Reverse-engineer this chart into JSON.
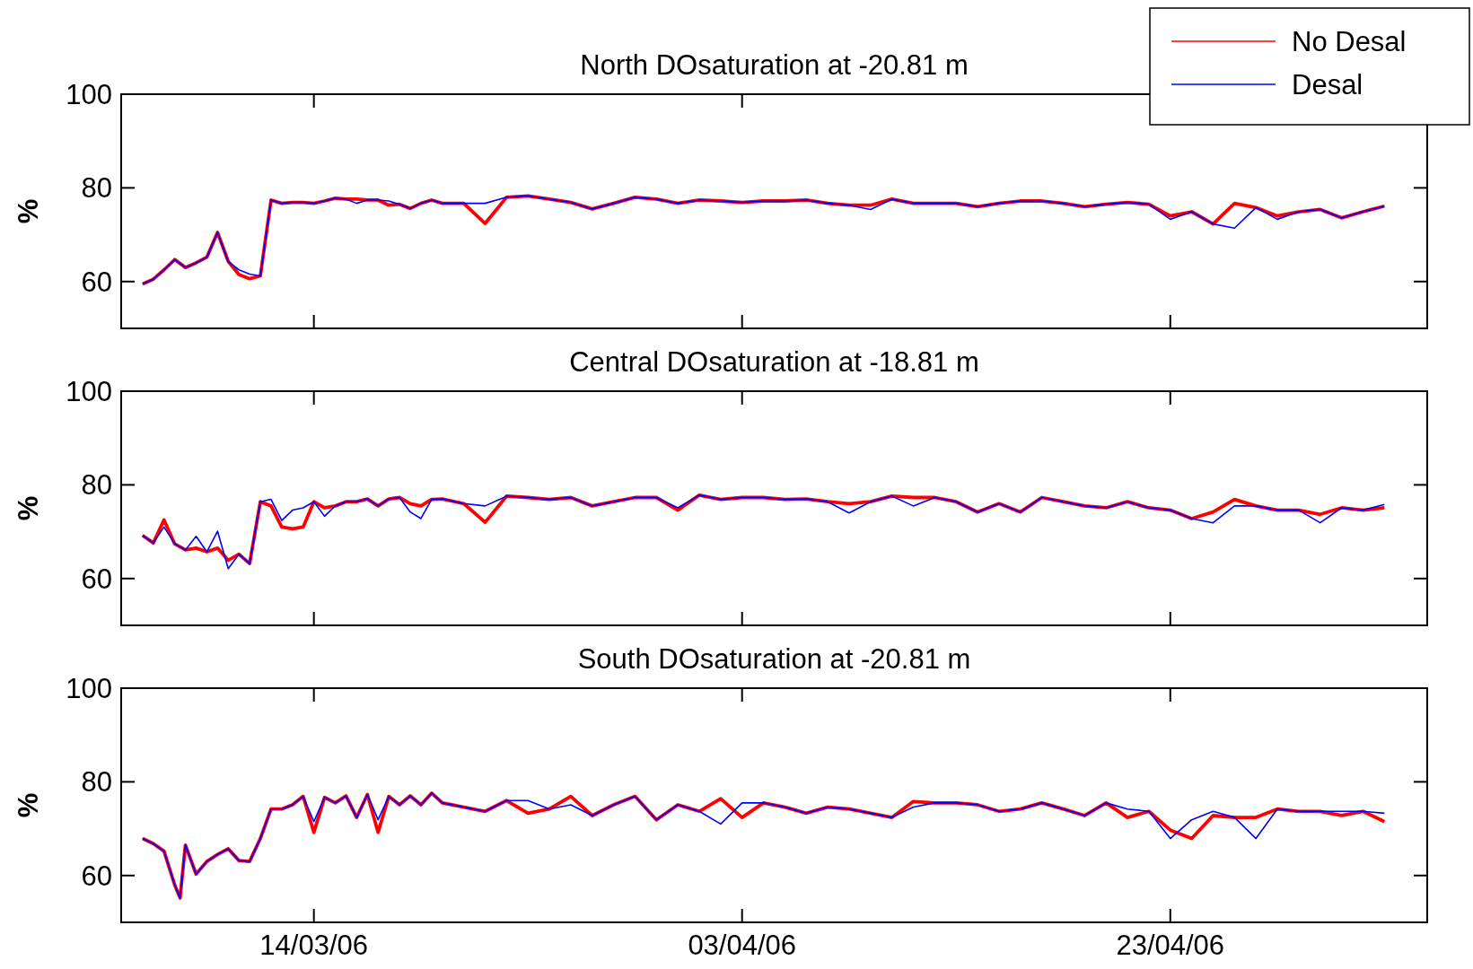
{
  "chart_data": [
    {
      "type": "line",
      "title": "North DOsaturation at -20.81 m",
      "ylabel": "%",
      "legend": "top right",
      "tick_labels": "y",
      "xlim": [
        "2006-03-05",
        "2006-05-05"
      ],
      "xticks": [
        {
          "value": "2006-03-14",
          "label": null
        },
        {
          "value": "2006-04-03",
          "label": null
        },
        {
          "value": "2006-04-23",
          "label": null
        }
      ],
      "ylim": [
        50,
        100
      ],
      "yticks": [
        60,
        80,
        100
      ],
      "x": [
        "2006-03-06T00:00",
        "2006-03-06T12:00",
        "2006-03-07T00:00",
        "2006-03-07T12:00",
        "2006-03-08T00:00",
        "2006-03-08T12:00",
        "2006-03-09T00:00",
        "2006-03-09T12:00",
        "2006-03-10T00:00",
        "2006-03-10T12:00",
        "2006-03-11T00:00",
        "2006-03-11T12:00",
        "2006-03-12T00:00",
        "2006-03-12T12:00",
        "2006-03-13T00:00",
        "2006-03-13T12:00",
        "2006-03-14T00:00",
        "2006-03-14T12:00",
        "2006-03-15T00:00",
        "2006-03-15T12:00",
        "2006-03-16T00:00",
        "2006-03-16T12:00",
        "2006-03-17T00:00",
        "2006-03-17T12:00",
        "2006-03-18T00:00",
        "2006-03-18T12:00",
        "2006-03-19T00:00",
        "2006-03-19T12:00",
        "2006-03-20",
        "2006-03-21",
        "2006-03-22",
        "2006-03-23",
        "2006-03-24",
        "2006-03-25",
        "2006-03-26",
        "2006-03-27",
        "2006-03-28",
        "2006-03-29",
        "2006-03-30",
        "2006-03-31",
        "2006-04-01",
        "2006-04-02",
        "2006-04-03",
        "2006-04-04",
        "2006-04-05",
        "2006-04-06",
        "2006-04-07",
        "2006-04-08",
        "2006-04-09",
        "2006-04-10",
        "2006-04-11",
        "2006-04-12",
        "2006-04-13",
        "2006-04-14",
        "2006-04-15",
        "2006-04-16",
        "2006-04-17",
        "2006-04-18",
        "2006-04-19",
        "2006-04-20",
        "2006-04-21",
        "2006-04-22",
        "2006-04-23",
        "2006-04-24",
        "2006-04-25",
        "2006-04-26",
        "2006-04-27",
        "2006-04-28",
        "2006-04-29",
        "2006-04-30",
        "2006-05-01",
        "2006-05-02",
        "2006-05-03"
      ],
      "series": [
        {
          "name": "No Desal",
          "color": "#ff0000",
          "values": [
            59.5,
            60.5,
            62.5,
            64.7,
            63,
            64,
            65.2,
            70.5,
            64.3,
            61.5,
            60.6,
            61.2,
            77.4,
            76.7,
            76.9,
            76.9,
            76.7,
            77.2,
            77.8,
            77.6,
            77.6,
            77.4,
            77.4,
            76.3,
            76.5,
            75.6,
            76.7,
            77.4,
            76.7,
            76.7,
            72.4,
            78,
            78.3,
            77.6,
            76.9,
            75.5,
            76.7,
            78,
            77.6,
            76.7,
            77.4,
            77.2,
            76.9,
            77.2,
            77.2,
            77.4,
            76.7,
            76.3,
            76.3,
            77.6,
            76.7,
            76.7,
            76.7,
            76,
            76.7,
            77.2,
            77.2,
            76.7,
            76,
            76.5,
            76.9,
            76.5,
            74,
            74.9,
            72.3,
            76.7,
            75.8,
            74,
            74.9,
            75.4,
            73.6,
            74.9,
            76.1
          ]
        },
        {
          "name": "Desal",
          "color": "#0000ff",
          "values": [
            59.5,
            60.5,
            62.5,
            64.7,
            63,
            64,
            65.2,
            70.5,
            64.3,
            62.5,
            61.6,
            61.2,
            77.4,
            76.7,
            76.9,
            76.9,
            76.7,
            77.2,
            77.8,
            77.6,
            76.7,
            77.4,
            77.4,
            77.2,
            76.5,
            75.6,
            76.7,
            77.4,
            76.7,
            76.7,
            76.7,
            78,
            78.3,
            77.6,
            76.9,
            75.5,
            76.7,
            78,
            77.6,
            76.7,
            77.4,
            77.2,
            76.9,
            77.2,
            77.2,
            77.4,
            76.7,
            76.3,
            75.4,
            77.6,
            76.7,
            76.7,
            76.7,
            76,
            76.7,
            77.2,
            77.2,
            76.7,
            76,
            76.5,
            76.9,
            76.5,
            73.3,
            74.9,
            72.3,
            71.4,
            75.8,
            73.3,
            74.9,
            75.4,
            73.6,
            74.9,
            76.1
          ]
        }
      ]
    },
    {
      "type": "line",
      "title": "Central DOsaturation at -18.81 m",
      "ylabel": "%",
      "tick_labels": "y",
      "xlim": [
        "2006-03-05",
        "2006-05-05"
      ],
      "xticks": [
        {
          "value": "2006-03-14",
          "label": null
        },
        {
          "value": "2006-04-03",
          "label": null
        },
        {
          "value": "2006-04-23",
          "label": null
        }
      ],
      "ylim": [
        50,
        100
      ],
      "yticks": [
        60,
        80,
        100
      ],
      "x": [
        "2006-03-06T00:00",
        "2006-03-06T12:00",
        "2006-03-07T00:00",
        "2006-03-07T12:00",
        "2006-03-08T00:00",
        "2006-03-08T12:00",
        "2006-03-09T00:00",
        "2006-03-09T12:00",
        "2006-03-10T00:00",
        "2006-03-10T12:00",
        "2006-03-11T00:00",
        "2006-03-11T12:00",
        "2006-03-12T00:00",
        "2006-03-12T12:00",
        "2006-03-13T00:00",
        "2006-03-13T12:00",
        "2006-03-14T00:00",
        "2006-03-14T12:00",
        "2006-03-15T00:00",
        "2006-03-15T12:00",
        "2006-03-16T00:00",
        "2006-03-16T12:00",
        "2006-03-17T00:00",
        "2006-03-17T12:00",
        "2006-03-18T00:00",
        "2006-03-18T12:00",
        "2006-03-19T00:00",
        "2006-03-19T12:00",
        "2006-03-20",
        "2006-03-21",
        "2006-03-22",
        "2006-03-23",
        "2006-03-24",
        "2006-03-25",
        "2006-03-26",
        "2006-03-27",
        "2006-03-28",
        "2006-03-29",
        "2006-03-30",
        "2006-03-31",
        "2006-04-01",
        "2006-04-02",
        "2006-04-03",
        "2006-04-04",
        "2006-04-05",
        "2006-04-06",
        "2006-04-07",
        "2006-04-08",
        "2006-04-09",
        "2006-04-10",
        "2006-04-11",
        "2006-04-12",
        "2006-04-13",
        "2006-04-14",
        "2006-04-15",
        "2006-04-16",
        "2006-04-17",
        "2006-04-18",
        "2006-04-19",
        "2006-04-20",
        "2006-04-21",
        "2006-04-22",
        "2006-04-23",
        "2006-04-24",
        "2006-04-25",
        "2006-04-26",
        "2006-04-27",
        "2006-04-28",
        "2006-04-29",
        "2006-04-30",
        "2006-05-01",
        "2006-05-02",
        "2006-05-03"
      ],
      "series": [
        {
          "color": "#ff0000",
          "values": [
            69.2,
            67.6,
            72.5,
            67.4,
            66.1,
            66.5,
            65.7,
            66.5,
            63.9,
            65.2,
            63.2,
            76.4,
            75.5,
            71,
            70.6,
            71,
            76.4,
            75.1,
            75.5,
            76.4,
            76.4,
            77,
            75.5,
            77,
            77.3,
            76,
            75.5,
            76.9,
            77,
            76,
            72,
            77.6,
            77.3,
            76.9,
            77.3,
            75.5,
            76.4,
            77.3,
            77.3,
            74.6,
            77.8,
            76.9,
            77.3,
            77.3,
            76.9,
            77,
            76.4,
            76,
            76.4,
            77.6,
            77.3,
            77.3,
            76.4,
            74.2,
            76,
            74.2,
            77.3,
            76.4,
            75.5,
            75.1,
            76.4,
            75.1,
            74.6,
            72.8,
            74.2,
            76.9,
            75.5,
            74.6,
            74.6,
            73.7,
            75.1,
            74.6,
            75.1
          ]
        },
        {
          "color": "#0000ff",
          "values": [
            69.2,
            67.6,
            71,
            67.4,
            66.1,
            69,
            65.7,
            70.1,
            62.1,
            65.2,
            63.2,
            76.4,
            76.9,
            72.4,
            74.6,
            75.1,
            76.4,
            73.3,
            75.5,
            76.4,
            76.4,
            77,
            75.5,
            77,
            77.3,
            74.2,
            72.8,
            76.9,
            77,
            76,
            75.5,
            77.6,
            77.3,
            76.9,
            77.3,
            75.5,
            76.4,
            77.3,
            77.3,
            75.1,
            77.8,
            76.9,
            77.3,
            77.3,
            76.9,
            77,
            76.4,
            74,
            76.4,
            77.6,
            75.5,
            77.3,
            76.4,
            74.2,
            76,
            74.2,
            77.3,
            76.4,
            75.5,
            75.1,
            76.4,
            75.1,
            74.6,
            72.8,
            71.9,
            75.5,
            75.5,
            74.6,
            74.6,
            71.9,
            75.1,
            74.6,
            75.8
          ]
        }
      ]
    },
    {
      "type": "line",
      "title": "South DOsaturation at -20.81 m",
      "ylabel": "%",
      "xlim": [
        "2006-03-05",
        "2006-05-05"
      ],
      "xticks": [
        {
          "value": "2006-03-14",
          "label": "14/03/06"
        },
        {
          "value": "2006-04-03",
          "label": "03/04/06"
        },
        {
          "value": "2006-04-23",
          "label": "23/04/06"
        }
      ],
      "ylim": [
        50,
        100
      ],
      "yticks": [
        60,
        80,
        100
      ],
      "x": [
        "2006-03-06T00:00",
        "2006-03-06T12:00",
        "2006-03-07T00:00",
        "2006-03-07T12:00",
        "2006-03-07T18:00",
        "2006-03-08T00:00",
        "2006-03-08T12:00",
        "2006-03-09T00:00",
        "2006-03-09T12:00",
        "2006-03-10T00:00",
        "2006-03-10T12:00",
        "2006-03-11T00:00",
        "2006-03-11T12:00",
        "2006-03-12T00:00",
        "2006-03-12T12:00",
        "2006-03-13T00:00",
        "2006-03-13T12:00",
        "2006-03-14T00:00",
        "2006-03-14T12:00",
        "2006-03-15T00:00",
        "2006-03-15T12:00",
        "2006-03-16T00:00",
        "2006-03-16T12:00",
        "2006-03-17T00:00",
        "2006-03-17T12:00",
        "2006-03-18T00:00",
        "2006-03-18T12:00",
        "2006-03-19T00:00",
        "2006-03-19T12:00",
        "2006-03-20",
        "2006-03-21",
        "2006-03-22",
        "2006-03-23",
        "2006-03-24",
        "2006-03-25",
        "2006-03-26",
        "2006-03-27",
        "2006-03-28",
        "2006-03-29",
        "2006-03-30",
        "2006-03-31",
        "2006-04-01",
        "2006-04-02",
        "2006-04-03",
        "2006-04-04",
        "2006-04-05",
        "2006-04-06",
        "2006-04-07",
        "2006-04-08",
        "2006-04-09",
        "2006-04-10",
        "2006-04-11",
        "2006-04-12",
        "2006-04-13",
        "2006-04-14",
        "2006-04-15",
        "2006-04-16",
        "2006-04-17",
        "2006-04-18",
        "2006-04-19",
        "2006-04-20",
        "2006-04-21",
        "2006-04-22",
        "2006-04-23",
        "2006-04-24",
        "2006-04-25",
        "2006-04-26",
        "2006-04-27",
        "2006-04-28",
        "2006-04-29",
        "2006-04-30",
        "2006-05-01",
        "2006-05-02",
        "2006-05-03"
      ],
      "series": [
        {
          "color": "#ff0000",
          "values": [
            67.9,
            66.8,
            65.2,
            58,
            55.2,
            66.5,
            60.3,
            63,
            64.5,
            65.7,
            63.2,
            63,
            67.9,
            74.2,
            74.2,
            75.1,
            76.9,
            69.2,
            76.7,
            75.5,
            77,
            72.4,
            77.3,
            69.2,
            76.9,
            75.1,
            77,
            75.1,
            77.6,
            75.5,
            74.6,
            73.7,
            76,
            73.3,
            74.2,
            76.9,
            72.8,
            75.1,
            76.9,
            71.9,
            75.1,
            73.7,
            76.4,
            72.4,
            75.5,
            74.6,
            73.3,
            74.6,
            74.2,
            73.3,
            72.4,
            75.8,
            75.5,
            75.5,
            75.1,
            73.7,
            74.2,
            75.5,
            74.2,
            72.8,
            75.5,
            72.4,
            73.7,
            69.7,
            67.9,
            72.8,
            72.4,
            72.4,
            74.2,
            73.7,
            73.7,
            72.8,
            73.7,
            71.5
          ]
        },
        {
          "color": "#0000ff",
          "values": [
            67.9,
            66.8,
            65.2,
            58,
            55.2,
            66.5,
            60.3,
            63,
            64.5,
            65.7,
            63.2,
            63,
            67.9,
            74.2,
            74.2,
            75.1,
            76.9,
            71.5,
            76.7,
            75.5,
            77,
            72.4,
            77.3,
            71.9,
            76.9,
            75.1,
            77,
            75.1,
            77.6,
            75.5,
            74.6,
            73.7,
            76,
            76,
            74.2,
            75.1,
            72.8,
            75.1,
            76.9,
            71.9,
            75.1,
            73.7,
            71,
            75.5,
            75.5,
            74.6,
            73.3,
            74.6,
            74.2,
            73.3,
            72.4,
            74.6,
            75.5,
            75.5,
            75.1,
            73.7,
            74.2,
            75.5,
            74.2,
            72.8,
            75.5,
            74.2,
            73.7,
            67.9,
            71.9,
            73.7,
            72.4,
            67.9,
            74.2,
            73.7,
            73.7,
            73.7,
            73.7,
            73.3
          ]
        }
      ]
    }
  ]
}
